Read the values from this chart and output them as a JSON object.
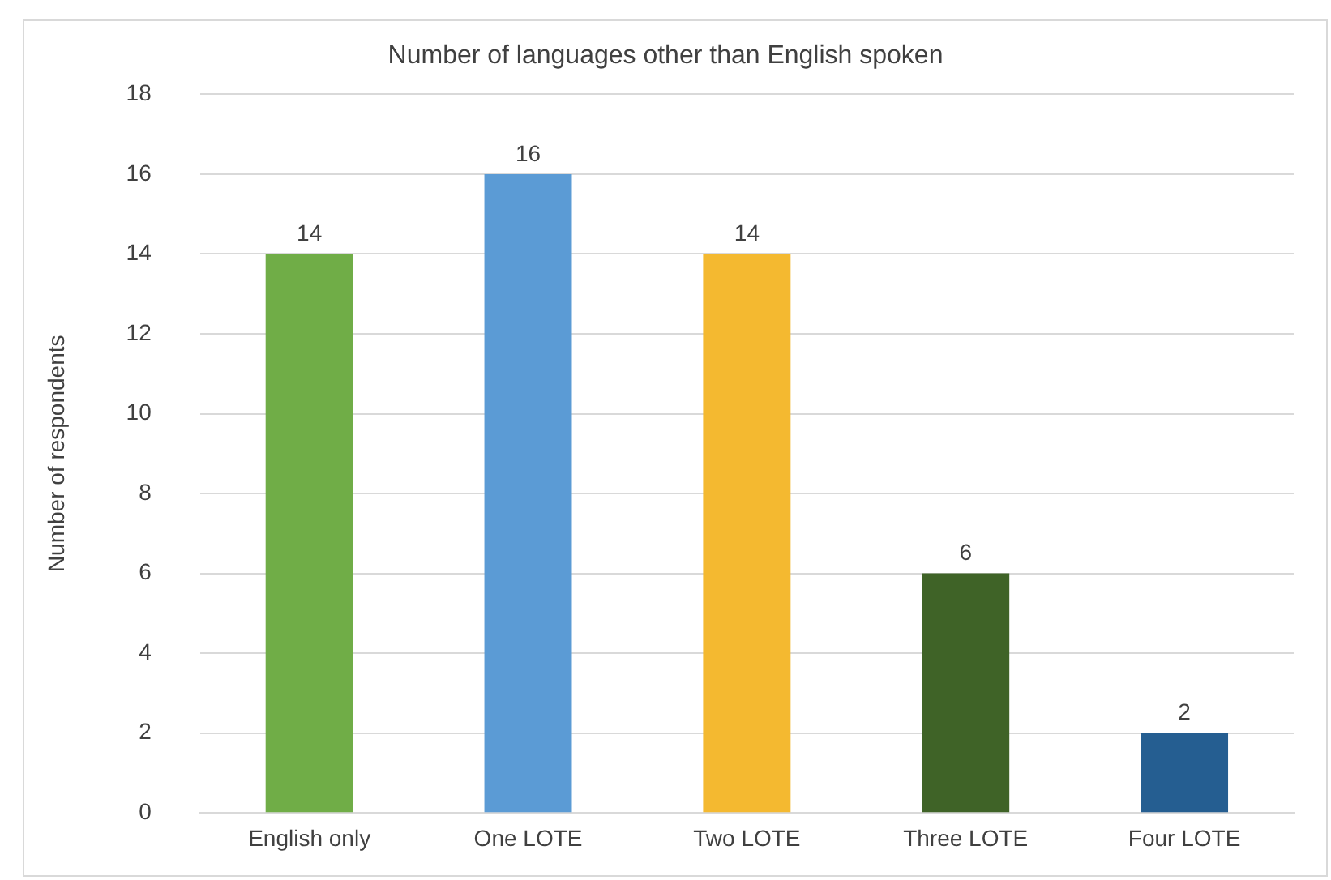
{
  "chart_data": {
    "type": "bar",
    "title": "Number of languages other than English spoken",
    "ylabel": "Number of respondents",
    "categories": [
      "English only",
      "One LOTE",
      "Two LOTE",
      "Three LOTE",
      "Four LOTE"
    ],
    "values": [
      14,
      16,
      14,
      6,
      2
    ],
    "colors": [
      "#70ad47",
      "#5b9bd5",
      "#f4b930",
      "#3f6327",
      "#255e91"
    ],
    "ylim": [
      0,
      18
    ],
    "yticks": [
      0,
      2,
      4,
      6,
      8,
      10,
      12,
      14,
      16,
      18
    ],
    "grid": "y",
    "legend": false,
    "data_labels": true
  }
}
